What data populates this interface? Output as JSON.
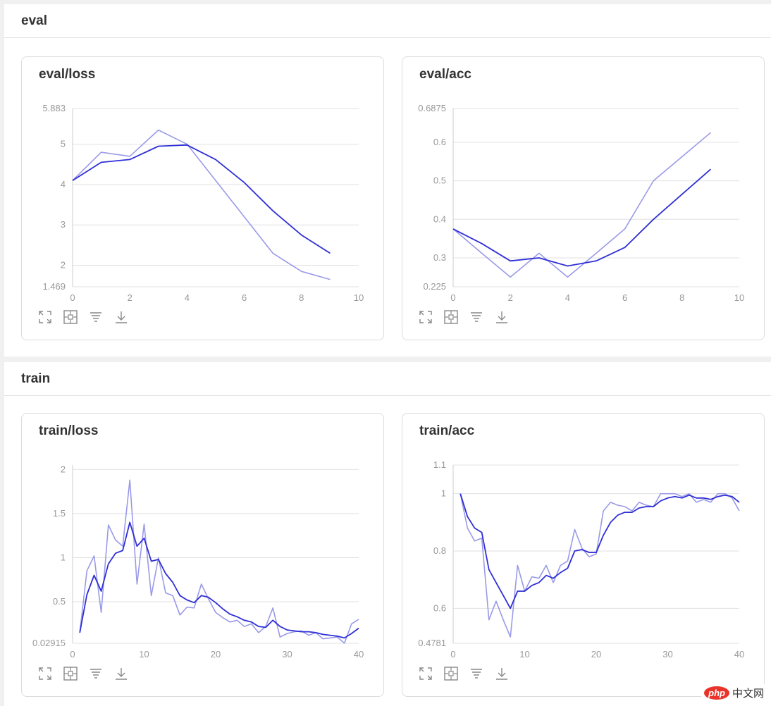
{
  "sections": [
    {
      "title": "eval"
    },
    {
      "title": "train"
    }
  ],
  "watermark": {
    "logo": "php",
    "text": "中文网"
  },
  "colors": {
    "smoothed": "#2f2fd6",
    "raw": "#9a9ae8",
    "grid": "#e0e0e0",
    "axis": "#cccccc"
  },
  "toolbar_icons": [
    "expand-icon",
    "fit-icon",
    "filter-icon",
    "download-icon"
  ],
  "chart_data": [
    {
      "title": "eval/loss",
      "type": "line",
      "xlim": [
        0,
        10
      ],
      "xticks": [
        0,
        2,
        4,
        6,
        8,
        10
      ],
      "ylim": [
        1.469,
        5.883
      ],
      "yticks": [
        1.469,
        2,
        3,
        4,
        5,
        5.883
      ],
      "ytick_labels": [
        "1.469",
        "2",
        "3",
        "4",
        "5",
        "5.883"
      ],
      "series": [
        {
          "role": "raw",
          "x": [
            0,
            1,
            2,
            3,
            4,
            5,
            6,
            7,
            8,
            9
          ],
          "y": [
            4.1,
            4.8,
            4.7,
            5.35,
            5.0,
            4.1,
            3.2,
            2.3,
            1.85,
            1.65
          ]
        },
        {
          "role": "smoothed",
          "x": [
            0,
            1,
            2,
            3,
            4,
            5,
            6,
            7,
            8,
            9
          ],
          "y": [
            4.1,
            4.55,
            4.62,
            4.95,
            4.98,
            4.62,
            4.05,
            3.35,
            2.75,
            2.3
          ]
        }
      ]
    },
    {
      "title": "eval/acc",
      "type": "line",
      "xlim": [
        0,
        10
      ],
      "xticks": [
        0,
        2,
        4,
        6,
        8,
        10
      ],
      "ylim": [
        0.225,
        0.6875
      ],
      "yticks": [
        0.225,
        0.3,
        0.4,
        0.5,
        0.6,
        0.6875
      ],
      "ytick_labels": [
        "0.225",
        "0.3",
        "0.4",
        "0.5",
        "0.6",
        "0.6875"
      ],
      "series": [
        {
          "role": "raw",
          "x": [
            0,
            1,
            2,
            3,
            4,
            5,
            6,
            7,
            8,
            9
          ],
          "y": [
            0.375,
            0.312,
            0.25,
            0.312,
            0.25,
            0.312,
            0.375,
            0.5,
            0.5625,
            0.625
          ]
        },
        {
          "role": "smoothed",
          "x": [
            0,
            1,
            2,
            3,
            4,
            5,
            6,
            7,
            8,
            9
          ],
          "y": [
            0.375,
            0.337,
            0.292,
            0.3,
            0.279,
            0.292,
            0.327,
            0.4,
            0.465,
            0.53
          ]
        }
      ]
    },
    {
      "title": "train/loss",
      "type": "line",
      "xlim": [
        0,
        40
      ],
      "xticks": [
        0,
        10,
        20,
        30,
        40
      ],
      "ylim": [
        0.02915,
        2.05
      ],
      "yticks": [
        0.02915,
        0.5,
        1,
        1.5,
        2
      ],
      "ytick_labels": [
        "0.02915",
        "0.5",
        "1",
        "1.5",
        "2"
      ],
      "series": [
        {
          "role": "raw",
          "x": [
            1,
            2,
            3,
            4,
            5,
            6,
            7,
            8,
            9,
            10,
            11,
            12,
            13,
            14,
            15,
            16,
            17,
            18,
            19,
            20,
            21,
            22,
            23,
            24,
            25,
            26,
            27,
            28,
            29,
            30,
            31,
            32,
            33,
            34,
            35,
            36,
            37,
            38,
            39,
            40
          ],
          "y": [
            0.15,
            0.85,
            1.02,
            0.38,
            1.37,
            1.2,
            1.13,
            1.88,
            0.7,
            1.38,
            0.57,
            1.0,
            0.6,
            0.57,
            0.35,
            0.44,
            0.43,
            0.7,
            0.53,
            0.38,
            0.32,
            0.27,
            0.29,
            0.22,
            0.25,
            0.15,
            0.22,
            0.43,
            0.1,
            0.14,
            0.16,
            0.17,
            0.12,
            0.15,
            0.08,
            0.09,
            0.1,
            0.03,
            0.25,
            0.3
          ]
        },
        {
          "role": "smoothed",
          "x": [
            1,
            2,
            3,
            4,
            5,
            6,
            7,
            8,
            9,
            10,
            11,
            12,
            13,
            14,
            15,
            16,
            17,
            18,
            19,
            20,
            21,
            22,
            23,
            24,
            25,
            26,
            27,
            28,
            29,
            30,
            31,
            32,
            33,
            34,
            35,
            36,
            37,
            38,
            39,
            40
          ],
          "y": [
            0.15,
            0.58,
            0.8,
            0.62,
            0.93,
            1.05,
            1.08,
            1.4,
            1.13,
            1.22,
            0.96,
            0.98,
            0.82,
            0.72,
            0.57,
            0.52,
            0.49,
            0.57,
            0.55,
            0.49,
            0.42,
            0.36,
            0.33,
            0.29,
            0.27,
            0.22,
            0.21,
            0.29,
            0.22,
            0.18,
            0.17,
            0.16,
            0.16,
            0.15,
            0.13,
            0.12,
            0.11,
            0.09,
            0.14,
            0.2
          ]
        }
      ]
    },
    {
      "title": "train/acc",
      "type": "line",
      "xlim": [
        0,
        40
      ],
      "xticks": [
        0,
        10,
        20,
        30,
        40
      ],
      "ylim": [
        0.4781,
        1.1
      ],
      "yticks": [
        0.4781,
        0.6,
        0.8,
        1,
        1.1
      ],
      "ytick_labels": [
        "0.4781",
        "0.6",
        "0.8",
        "1",
        "1.1"
      ],
      "series": [
        {
          "role": "raw",
          "x": [
            1,
            2,
            3,
            4,
            5,
            6,
            7,
            8,
            9,
            10,
            11,
            12,
            13,
            14,
            15,
            16,
            17,
            18,
            19,
            20,
            21,
            22,
            23,
            24,
            25,
            26,
            27,
            28,
            29,
            30,
            31,
            32,
            33,
            34,
            35,
            36,
            37,
            38,
            39,
            40
          ],
          "y": [
            1.0,
            0.88,
            0.835,
            0.845,
            0.56,
            0.625,
            0.56,
            0.5,
            0.75,
            0.66,
            0.71,
            0.705,
            0.75,
            0.69,
            0.75,
            0.765,
            0.875,
            0.81,
            0.78,
            0.79,
            0.94,
            0.97,
            0.96,
            0.955,
            0.94,
            0.97,
            0.96,
            0.955,
            1.0,
            1.0,
            1.0,
            0.99,
            1.0,
            0.97,
            0.98,
            0.97,
            1.0,
            1.0,
            0.985,
            0.94
          ]
        },
        {
          "role": "smoothed",
          "x": [
            1,
            2,
            3,
            4,
            5,
            6,
            7,
            8,
            9,
            10,
            11,
            12,
            13,
            14,
            15,
            16,
            17,
            18,
            19,
            20,
            21,
            22,
            23,
            24,
            25,
            26,
            27,
            28,
            29,
            30,
            31,
            32,
            33,
            34,
            35,
            36,
            37,
            38,
            39,
            40
          ],
          "y": [
            1.0,
            0.92,
            0.88,
            0.865,
            0.735,
            0.69,
            0.645,
            0.6,
            0.66,
            0.66,
            0.68,
            0.69,
            0.715,
            0.705,
            0.725,
            0.74,
            0.8,
            0.805,
            0.795,
            0.795,
            0.855,
            0.9,
            0.925,
            0.935,
            0.935,
            0.95,
            0.955,
            0.955,
            0.975,
            0.985,
            0.99,
            0.985,
            0.995,
            0.985,
            0.985,
            0.98,
            0.99,
            0.995,
            0.99,
            0.97
          ]
        }
      ]
    }
  ]
}
